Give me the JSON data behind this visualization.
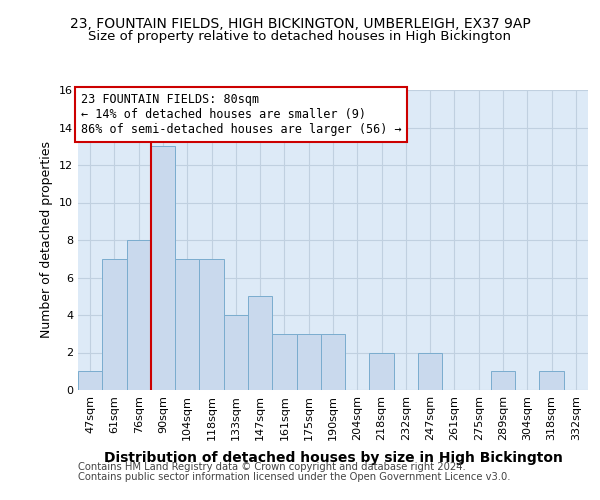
{
  "title1": "23, FOUNTAIN FIELDS, HIGH BICKINGTON, UMBERLEIGH, EX37 9AP",
  "title2": "Size of property relative to detached houses in High Bickington",
  "xlabel": "Distribution of detached houses by size in High Bickington",
  "ylabel": "Number of detached properties",
  "footnote1": "Contains HM Land Registry data © Crown copyright and database right 2024.",
  "footnote2": "Contains public sector information licensed under the Open Government Licence v3.0.",
  "categories": [
    "47sqm",
    "61sqm",
    "76sqm",
    "90sqm",
    "104sqm",
    "118sqm",
    "133sqm",
    "147sqm",
    "161sqm",
    "175sqm",
    "190sqm",
    "204sqm",
    "218sqm",
    "232sqm",
    "247sqm",
    "261sqm",
    "275sqm",
    "289sqm",
    "304sqm",
    "318sqm",
    "332sqm"
  ],
  "values": [
    1,
    7,
    8,
    13,
    7,
    7,
    4,
    5,
    3,
    3,
    3,
    0,
    2,
    0,
    2,
    0,
    0,
    1,
    0,
    1,
    0
  ],
  "bar_color": "#c9d9ed",
  "bar_edge_color": "#7aacce",
  "grid_color": "#c0d0e0",
  "background_color": "#ddeaf7",
  "fig_background": "#ffffff",
  "annotation_text": "23 FOUNTAIN FIELDS: 80sqm\n← 14% of detached houses are smaller (9)\n86% of semi-detached houses are larger (56) →",
  "annotation_box_color": "#cc0000",
  "red_line_x": 2.5,
  "ylim": [
    0,
    16
  ],
  "yticks": [
    0,
    2,
    4,
    6,
    8,
    10,
    12,
    14,
    16
  ],
  "title1_fontsize": 10,
  "title2_fontsize": 9.5,
  "xlabel_fontsize": 10,
  "ylabel_fontsize": 9,
  "tick_fontsize": 8,
  "annotation_fontsize": 8.5,
  "footnote_fontsize": 7.2
}
